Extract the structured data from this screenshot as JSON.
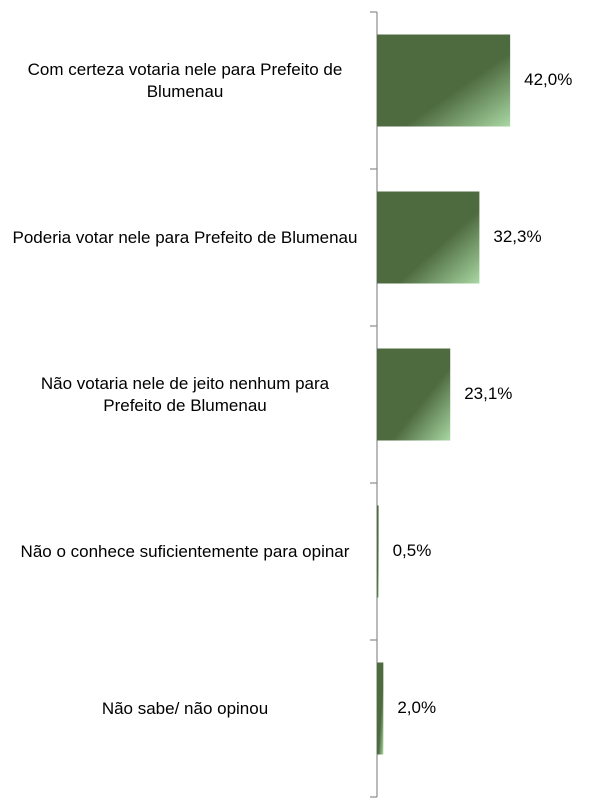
{
  "chart_data": {
    "type": "hbar",
    "categories": [
      "Com certeza votaria nele para Prefeito de Blumenau",
      "Poderia votar nele para Prefeito de Blumenau",
      "Não votaria nele de jeito nenhum para Prefeito de Blumenau",
      "Não o conhece suficientemente para opinar",
      "Não sabe/ não opinou"
    ],
    "values": [
      42.0,
      32.3,
      23.1,
      0.5,
      2.0
    ],
    "value_labels": [
      "42,0%",
      "32,3%",
      "23,1%",
      "0,5%",
      "2,0%"
    ],
    "color": "#4e6b3f"
  }
}
